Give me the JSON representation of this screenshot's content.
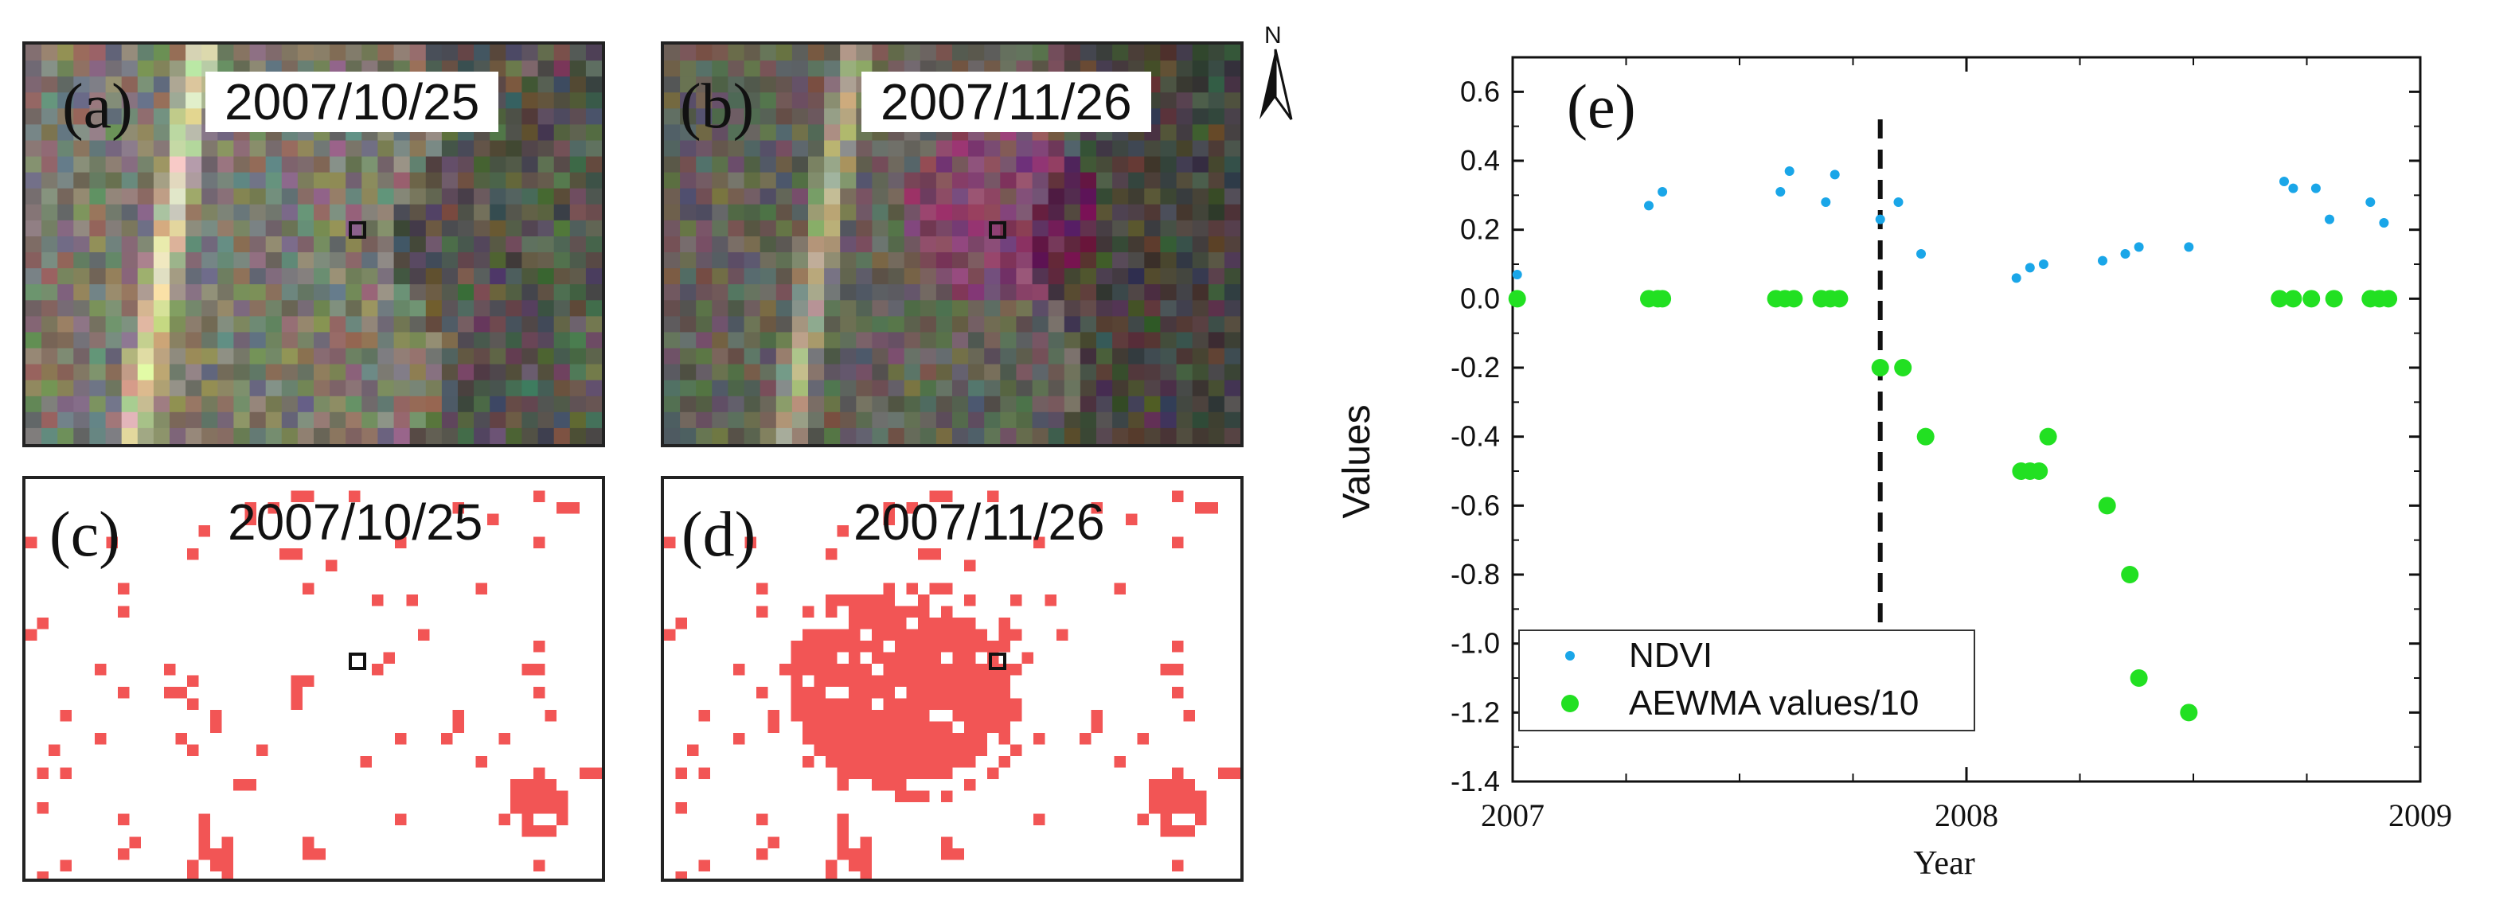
{
  "panels": {
    "a": {
      "label": "(a)",
      "date": "2007/10/25"
    },
    "b": {
      "label": "(b)",
      "date": "2007/11/26"
    },
    "c": {
      "label": "(c)",
      "date": "2007/10/25"
    },
    "d": {
      "label": "(d)",
      "date": "2007/11/26"
    }
  },
  "north_label": "N",
  "colors": {
    "change_pixels": "#f25555",
    "ndvi": "#1aa6e8",
    "aewma": "#22e022",
    "break_line": "#111111"
  },
  "chart_data": {
    "type": "scatter",
    "panel_label": "(e)",
    "xlabel": "Year",
    "ylabel": "Values",
    "xlim": [
      2007,
      2009
    ],
    "ylim": [
      -1.4,
      0.7
    ],
    "x_ticks": [
      "2007",
      "2008",
      "2009"
    ],
    "y_ticks": [
      "0.6",
      "0.4",
      "0.2",
      "0.0",
      "-0.2",
      "-0.4",
      "-0.6",
      "-0.8",
      "-1.0",
      "-1.2",
      "-1.4"
    ],
    "break_x": 2007.81,
    "legend_position": "bottom-left",
    "series": [
      {
        "name": "NDVI",
        "marker": "small-dot",
        "x": [
          2007.01,
          2007.3,
          2007.33,
          2007.59,
          2007.61,
          2007.69,
          2007.71,
          2007.81,
          2007.85,
          2007.9,
          2008.11,
          2008.14,
          2008.17,
          2008.3,
          2008.35,
          2008.38,
          2008.49,
          2008.7,
          2008.72,
          2008.77,
          2008.8,
          2008.89,
          2008.92
        ],
        "y": [
          0.07,
          0.27,
          0.31,
          0.31,
          0.37,
          0.28,
          0.36,
          0.23,
          0.28,
          0.13,
          0.06,
          0.09,
          0.1,
          0.11,
          0.13,
          0.15,
          0.15,
          0.34,
          0.32,
          0.32,
          0.23,
          0.28,
          0.22
        ]
      },
      {
        "name": "AEWMA values/10",
        "marker": "large-dot",
        "x": [
          2007.01,
          2007.3,
          2007.32,
          2007.33,
          2007.58,
          2007.6,
          2007.62,
          2007.68,
          2007.7,
          2007.72,
          2007.81,
          2007.86,
          2007.91,
          2008.12,
          2008.14,
          2008.16,
          2008.18,
          2008.31,
          2008.36,
          2008.38,
          2008.49,
          2008.69,
          2008.72,
          2008.76,
          2008.81,
          2008.89,
          2008.91,
          2008.93
        ],
        "y": [
          0.0,
          0.0,
          0.0,
          0.0,
          0.0,
          0.0,
          0.0,
          0.0,
          0.0,
          0.0,
          -0.2,
          -0.2,
          -0.4,
          -0.5,
          -0.5,
          -0.5,
          -0.4,
          -0.6,
          -0.8,
          -1.1,
          -1.2,
          0.0,
          0.0,
          0.0,
          0.0,
          0.0,
          0.0,
          0.0
        ]
      }
    ]
  }
}
